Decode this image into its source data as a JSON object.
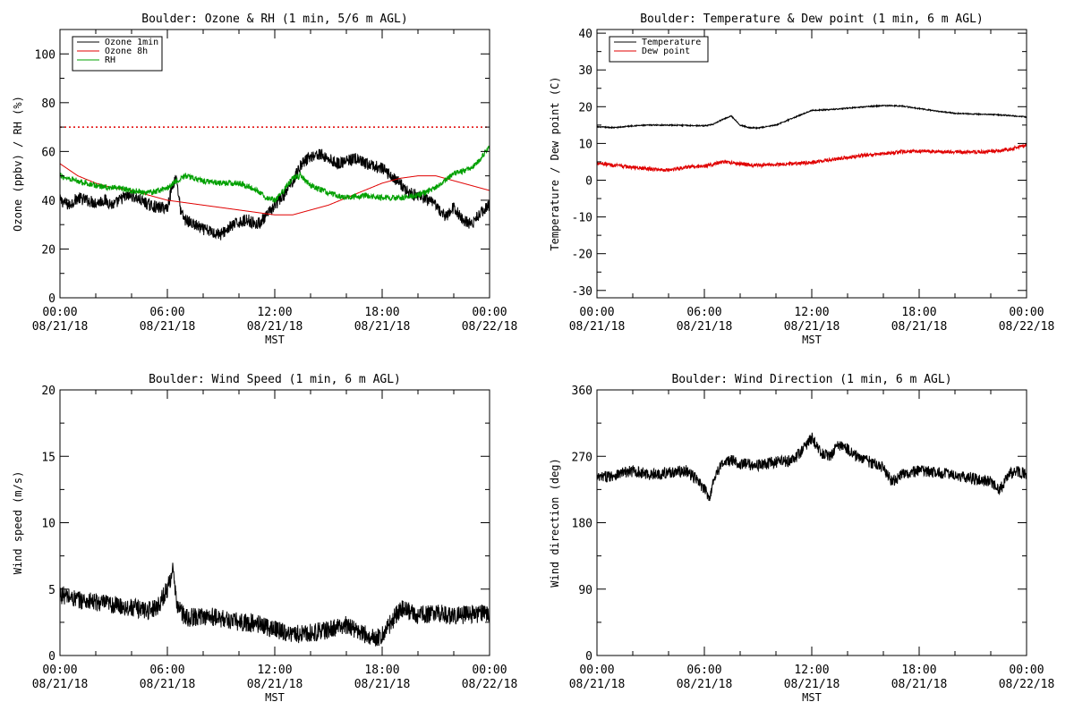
{
  "chart_data": [
    {
      "id": "ozone",
      "type": "line",
      "title": "Boulder: Ozone & RH (1 min, 5/6 m AGL)",
      "ylabel": "Ozone (ppbv) / RH (%)",
      "xlabel": "MST",
      "ylim": [
        0,
        110
      ],
      "yticks": [
        0,
        20,
        40,
        60,
        80,
        100
      ],
      "ytick_labels": [
        "0",
        "20",
        "40",
        "60",
        "80",
        "100"
      ],
      "xlim": [
        0,
        24
      ],
      "xticks": [
        0,
        6,
        12,
        18,
        24
      ],
      "xtick_labels": [
        [
          "00:00",
          "08/21/18"
        ],
        [
          "06:00",
          "08/21/18"
        ],
        [
          "12:00",
          "08/21/18"
        ],
        [
          "18:00",
          "08/21/18"
        ],
        [
          "00:00",
          "08/22/18"
        ]
      ],
      "legend": "top-left",
      "reference_line": {
        "y": 70,
        "color": "#e00000",
        "style": "dotted"
      },
      "series": [
        {
          "name": "Ozone 1min",
          "color": "#000000",
          "noise": 2.5,
          "x": [
            0,
            0.5,
            1,
            1.5,
            2,
            2.5,
            3,
            3.5,
            4,
            4.5,
            5,
            5.5,
            6,
            6.25,
            6.5,
            6.75,
            7,
            7.5,
            8,
            8.5,
            9,
            9.5,
            10,
            10.5,
            11,
            11.5,
            12,
            12.5,
            13,
            13.5,
            14,
            14.5,
            15,
            15.5,
            16,
            16.5,
            17,
            17.5,
            18,
            18.5,
            19,
            19.5,
            20,
            20.5,
            21,
            21.5,
            22,
            22.5,
            23,
            23.5,
            24
          ],
          "y": [
            40,
            38,
            41,
            40,
            39,
            40,
            38,
            41,
            42,
            40,
            38,
            37,
            37,
            45,
            50,
            35,
            32,
            30,
            28,
            27,
            26,
            29,
            31,
            32,
            30,
            33,
            38,
            42,
            48,
            55,
            58,
            59,
            57,
            55,
            56,
            57,
            55,
            54,
            53,
            50,
            47,
            43,
            42,
            40,
            38,
            33,
            37,
            32,
            30,
            35,
            38
          ]
        },
        {
          "name": "Ozone 8h",
          "color": "#e00000",
          "noise": 0,
          "x": [
            0,
            1,
            2,
            3,
            4,
            5,
            6,
            7,
            8,
            9,
            10,
            11,
            12,
            13,
            14,
            15,
            16,
            17,
            18,
            19,
            20,
            21,
            22,
            23,
            24
          ],
          "y": [
            55,
            50,
            47,
            45,
            44,
            42,
            40,
            39,
            38,
            37,
            36,
            35,
            34,
            34,
            36,
            38,
            41,
            44,
            47,
            49,
            50,
            50,
            48,
            46,
            44
          ]
        },
        {
          "name": "RH",
          "color": "#00a000",
          "noise": 1.2,
          "x": [
            0,
            1,
            2,
            3,
            4,
            5,
            6,
            6.5,
            7,
            8,
            9,
            10,
            11,
            11.5,
            12,
            12.5,
            13,
            13.5,
            14,
            15,
            16,
            17,
            18,
            19,
            20,
            21,
            22,
            23,
            23.5,
            24
          ],
          "y": [
            50,
            48,
            46,
            45,
            44,
            43,
            45,
            48,
            50,
            48,
            47,
            47,
            44,
            41,
            40,
            44,
            49,
            50,
            46,
            43,
            41,
            42,
            41,
            41,
            42,
            45,
            51,
            53,
            57,
            62
          ]
        }
      ]
    },
    {
      "id": "temp",
      "type": "line",
      "title": "Boulder: Temperature & Dew point (1 min, 6 m AGL)",
      "ylabel": "Temperature / Dew point (C)",
      "xlabel": "MST",
      "ylim": [
        -32,
        41
      ],
      "yticks": [
        -30,
        -20,
        -10,
        0,
        10,
        20,
        30,
        40
      ],
      "ytick_labels": [
        "-30",
        "-20",
        "-10",
        "0",
        "10",
        "20",
        "30",
        "40"
      ],
      "xlim": [
        0,
        24
      ],
      "xticks": [
        0,
        6,
        12,
        18,
        24
      ],
      "xtick_labels": [
        [
          "00:00",
          "08/21/18"
        ],
        [
          "06:00",
          "08/21/18"
        ],
        [
          "12:00",
          "08/21/18"
        ],
        [
          "18:00",
          "08/21/18"
        ],
        [
          "00:00",
          "08/22/18"
        ]
      ],
      "legend": "top-left",
      "series": [
        {
          "name": "Temperature",
          "color": "#000000",
          "noise": 0.15,
          "x": [
            0,
            1,
            2,
            3,
            4,
            5,
            6,
            6.5,
            7,
            7.5,
            8,
            8.5,
            9,
            10,
            11,
            12,
            13,
            14,
            15,
            16,
            17,
            18,
            19,
            20,
            21,
            22,
            23,
            24
          ],
          "y": [
            14.5,
            14.3,
            14.8,
            15,
            15,
            14.9,
            14.8,
            15.2,
            16.5,
            17.5,
            15,
            14.3,
            14.2,
            15,
            17,
            19,
            19.2,
            19.6,
            20,
            20.3,
            20.2,
            19.5,
            18.8,
            18.2,
            18,
            17.9,
            17.6,
            17.2
          ]
        },
        {
          "name": "Dew point",
          "color": "#e00000",
          "noise": 0.5,
          "x": [
            0,
            1,
            2,
            3,
            4,
            5,
            6,
            7,
            8,
            9,
            10,
            11,
            12,
            13,
            14,
            15,
            16,
            17,
            18,
            19,
            20,
            21,
            22,
            23,
            24
          ],
          "y": [
            4.8,
            4,
            3.5,
            3,
            2.8,
            3.5,
            3.8,
            5,
            4.5,
            4,
            4.3,
            4.5,
            4.8,
            5.5,
            6.2,
            6.8,
            7.3,
            7.7,
            7.9,
            7.8,
            7.7,
            7.6,
            7.9,
            8.3,
            9.5
          ]
        }
      ]
    },
    {
      "id": "wspd",
      "type": "line",
      "title": "Boulder: Wind Speed (1 min, 6 m AGL)",
      "ylabel": "Wind speed (m/s)",
      "xlabel": "MST",
      "ylim": [
        0,
        20
      ],
      "yticks": [
        0,
        5,
        10,
        15,
        20
      ],
      "ytick_labels": [
        "0",
        "5",
        "10",
        "15",
        "20"
      ],
      "xlim": [
        0,
        24
      ],
      "xticks": [
        0,
        6,
        12,
        18,
        24
      ],
      "xtick_labels": [
        [
          "00:00",
          "08/21/18"
        ],
        [
          "06:00",
          "08/21/18"
        ],
        [
          "12:00",
          "08/21/18"
        ],
        [
          "18:00",
          "08/21/18"
        ],
        [
          "00:00",
          "08/22/18"
        ]
      ],
      "series": [
        {
          "name": "",
          "color": "#000000",
          "noise": 0.7,
          "x": [
            0,
            1,
            2,
            3,
            4,
            5,
            5.5,
            6,
            6.3,
            6.5,
            7,
            7.5,
            8,
            9,
            10,
            11,
            12,
            13,
            14,
            15,
            16,
            17,
            17.5,
            18,
            18.5,
            19,
            19.5,
            20,
            21,
            22,
            23,
            24
          ],
          "y": [
            4.6,
            4.2,
            4,
            3.8,
            3.6,
            3.4,
            3.8,
            5,
            6.5,
            4,
            2.8,
            2.9,
            3,
            2.8,
            2.5,
            2.4,
            2,
            1.6,
            1.7,
            1.9,
            2.3,
            1.6,
            1.3,
            1.5,
            2.5,
            3.5,
            3.3,
            3,
            3.2,
            3,
            3.1,
            3.2
          ]
        }
      ]
    },
    {
      "id": "wdir",
      "type": "line",
      "title": "Boulder: Wind Direction (1 min, 6 m AGL)",
      "ylabel": "Wind direction (deg)",
      "xlabel": "MST",
      "ylim": [
        0,
        360
      ],
      "yticks": [
        0,
        90,
        180,
        270,
        360
      ],
      "ytick_labels": [
        "0",
        "90",
        "180",
        "270",
        "360"
      ],
      "xlim": [
        0,
        24
      ],
      "xticks": [
        0,
        6,
        12,
        18,
        24
      ],
      "xtick_labels": [
        [
          "00:00",
          "08/21/18"
        ],
        [
          "06:00",
          "08/21/18"
        ],
        [
          "12:00",
          "08/21/18"
        ],
        [
          "18:00",
          "08/21/18"
        ],
        [
          "00:00",
          "08/22/18"
        ]
      ],
      "series": [
        {
          "name": "",
          "color": "#000000",
          "noise": 8,
          "x": [
            0,
            1,
            2,
            3,
            4,
            5,
            5.5,
            6,
            6.3,
            6.6,
            7,
            7.5,
            8,
            9,
            10,
            11,
            11.5,
            12,
            12.5,
            13,
            13.5,
            14,
            14.5,
            15,
            16,
            16.5,
            17,
            18,
            19,
            20,
            21,
            22,
            22.5,
            23,
            23.5,
            24
          ],
          "y": [
            240,
            245,
            250,
            245,
            248,
            250,
            240,
            225,
            215,
            245,
            260,
            265,
            260,
            258,
            262,
            265,
            280,
            295,
            275,
            270,
            285,
            280,
            270,
            265,
            255,
            235,
            245,
            250,
            248,
            245,
            240,
            235,
            225,
            245,
            250,
            245
          ]
        }
      ]
    }
  ]
}
